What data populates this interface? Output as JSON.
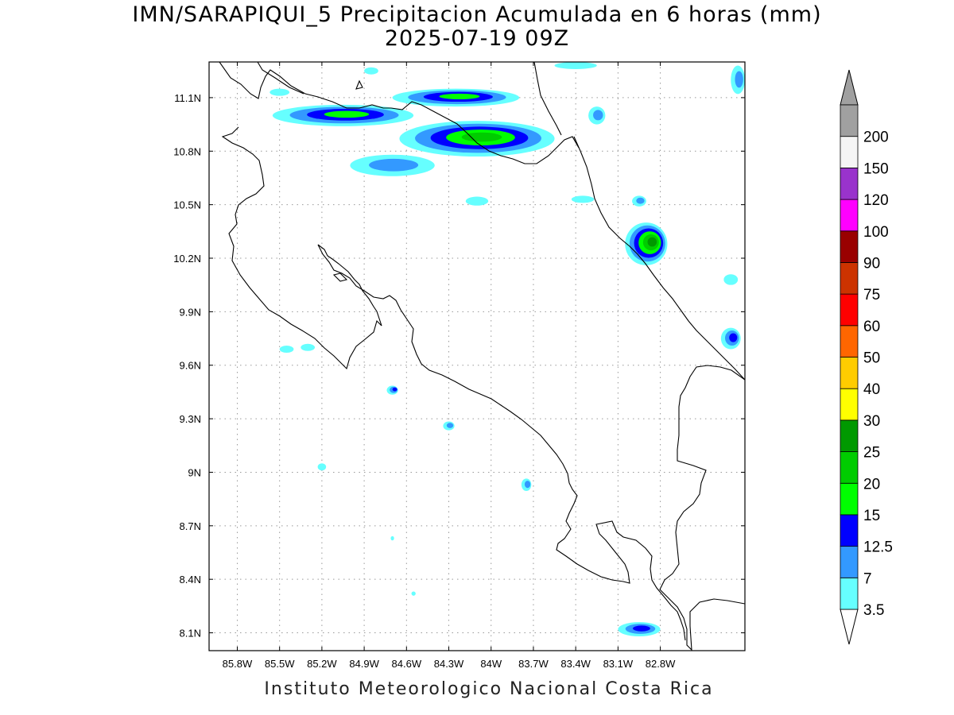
{
  "header": {
    "title_line1": "IMN/SARAPIQUI_5 Precipitacion Acumulada en 6 horas (mm)",
    "title_line2": "2025-07-19 09Z"
  },
  "footer": {
    "credit": "Instituto Meteorologico Nacional Costa Rica"
  },
  "map": {
    "lon_range": [
      -86.0,
      -82.2
    ],
    "lat_range": [
      8.0,
      11.3
    ],
    "lat_labels": [
      "11.1N",
      "10.8N",
      "10.5N",
      "10.2N",
      "9.9N",
      "9.6N",
      "9.3N",
      "9N",
      "8.7N",
      "8.4N",
      "8.1N"
    ],
    "lat_values": [
      11.1,
      10.8,
      10.5,
      10.2,
      9.9,
      9.6,
      9.3,
      9.0,
      8.7,
      8.4,
      8.1
    ],
    "lon_labels": [
      "85.8W",
      "85.5W",
      "85.2W",
      "84.9W",
      "84.6W",
      "84.3W",
      "84W",
      "83.7W",
      "83.4W",
      "83.1W",
      "82.8W"
    ],
    "lon_values": [
      -85.8,
      -85.5,
      -85.2,
      -84.9,
      -84.6,
      -84.3,
      -84.0,
      -83.7,
      -83.4,
      -83.1,
      -82.8
    ],
    "grid": true,
    "coastline_color": "#000000"
  },
  "colorbar": {
    "labels": [
      "3.5",
      "7",
      "12.5",
      "15",
      "20",
      "25",
      "30",
      "40",
      "50",
      "60",
      "75",
      "90",
      "100",
      "120",
      "150",
      "200"
    ],
    "colors": [
      "#66ffff",
      "#3399ff",
      "#0000ff",
      "#00ff00",
      "#00cc00",
      "#009900",
      "#ffff00",
      "#ffcc00",
      "#ff6600",
      "#ff0000",
      "#cc3300",
      "#990000",
      "#ff00ff",
      "#9933cc",
      "#f5f5f5",
      "#a0a0a0"
    ]
  },
  "precip_cells": [
    {
      "lon": -85.05,
      "lat": 11.0,
      "rx": 0.5,
      "ry": 0.06,
      "level": 3
    },
    {
      "lon": -84.25,
      "lat": 11.1,
      "rx": 0.45,
      "ry": 0.05,
      "level": 3
    },
    {
      "lon": -84.1,
      "lat": 10.87,
      "rx": 0.55,
      "ry": 0.1,
      "level": 4
    },
    {
      "lon": -84.7,
      "lat": 10.72,
      "rx": 0.3,
      "ry": 0.06,
      "level": 1
    },
    {
      "lon": -82.9,
      "lat": 10.28,
      "rx": 0.15,
      "ry": 0.12,
      "level": 5
    },
    {
      "lon": -82.3,
      "lat": 9.75,
      "rx": 0.07,
      "ry": 0.06,
      "level": 2
    },
    {
      "lon": -84.7,
      "lat": 9.46,
      "rx": 0.04,
      "ry": 0.025,
      "level": 2
    },
    {
      "lon": -84.3,
      "lat": 9.26,
      "rx": 0.04,
      "ry": 0.025,
      "level": 1
    },
    {
      "lon": -83.75,
      "lat": 8.93,
      "rx": 0.035,
      "ry": 0.035,
      "level": 1
    },
    {
      "lon": -82.95,
      "lat": 8.12,
      "rx": 0.15,
      "ry": 0.04,
      "level": 2
    },
    {
      "lon": -85.45,
      "lat": 9.69,
      "rx": 0.05,
      "ry": 0.02,
      "level": 0
    },
    {
      "lon": -85.3,
      "lat": 9.7,
      "rx": 0.05,
      "ry": 0.02,
      "level": 0
    },
    {
      "lon": -83.25,
      "lat": 11.0,
      "rx": 0.06,
      "ry": 0.05,
      "level": 1
    },
    {
      "lon": -82.95,
      "lat": 10.52,
      "rx": 0.05,
      "ry": 0.03,
      "level": 1
    },
    {
      "lon": -84.1,
      "lat": 10.52,
      "rx": 0.08,
      "ry": 0.025,
      "level": 0
    },
    {
      "lon": -83.35,
      "lat": 10.53,
      "rx": 0.08,
      "ry": 0.02,
      "level": 0
    },
    {
      "lon": -85.5,
      "lat": 11.13,
      "rx": 0.07,
      "ry": 0.02,
      "level": 0
    },
    {
      "lon": -84.85,
      "lat": 11.25,
      "rx": 0.05,
      "ry": 0.02,
      "level": 0
    },
    {
      "lon": -85.2,
      "lat": 9.03,
      "rx": 0.03,
      "ry": 0.02,
      "level": 0
    },
    {
      "lon": -84.55,
      "lat": 8.32,
      "rx": 0.015,
      "ry": 0.012,
      "level": 0
    },
    {
      "lon": -84.7,
      "lat": 8.63,
      "rx": 0.012,
      "ry": 0.012,
      "level": 0
    },
    {
      "lon": -82.25,
      "lat": 11.2,
      "rx": 0.05,
      "ry": 0.08,
      "level": 1
    },
    {
      "lon": -82.3,
      "lat": 10.08,
      "rx": 0.05,
      "ry": 0.03,
      "level": 0
    },
    {
      "lon": -83.4,
      "lat": 11.28,
      "rx": 0.15,
      "ry": 0.02,
      "level": 0
    }
  ]
}
